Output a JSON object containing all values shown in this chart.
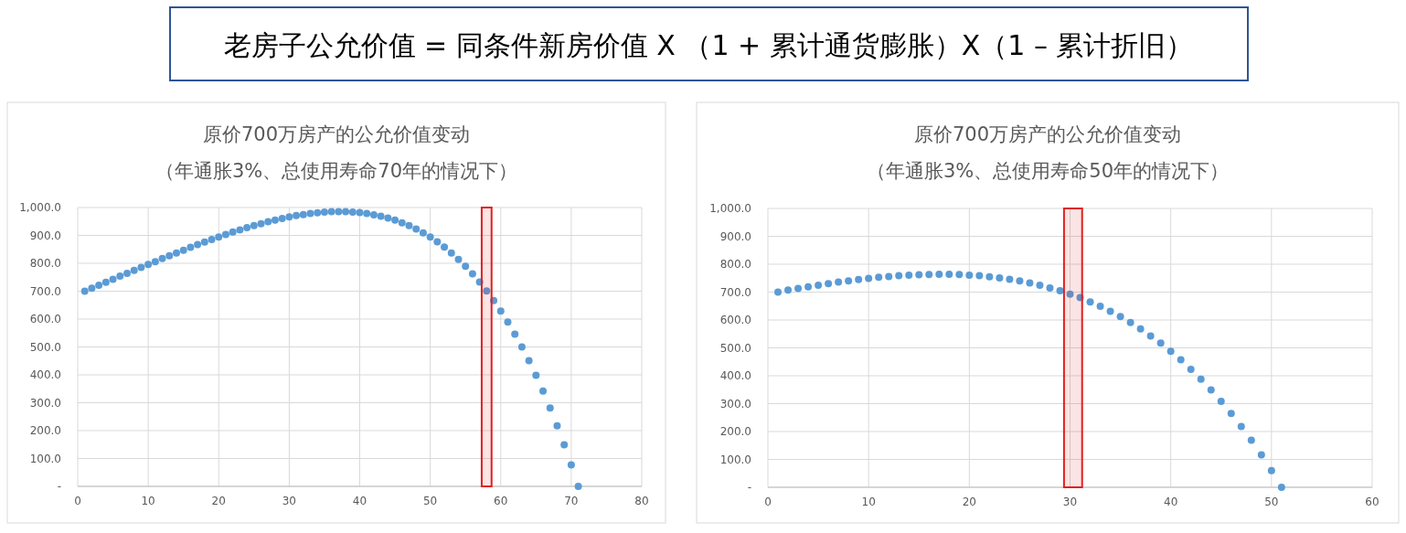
{
  "chart_data": [
    {
      "type": "other",
      "title": "老房子公允价值 = 同条件新房价值 X （1 + 累计通货膨胀）X（1 – 累计折旧）"
    },
    {
      "type": "scatter",
      "title": "原价700万房产的公允价值变动",
      "subtitle": "（年通胀3%、总使用寿命70年的情况下）",
      "marker": "circle",
      "grid": true,
      "x": [
        1,
        2,
        3,
        4,
        5,
        6,
        7,
        8,
        9,
        10,
        11,
        12,
        13,
        14,
        15,
        16,
        17,
        18,
        19,
        20,
        21,
        22,
        23,
        24,
        25,
        26,
        27,
        28,
        29,
        30,
        31,
        32,
        33,
        34,
        35,
        36,
        37,
        38,
        39,
        40,
        41,
        42,
        43,
        44,
        45,
        46,
        47,
        48,
        49,
        50,
        51,
        52,
        53,
        54,
        55,
        56,
        57,
        58,
        59,
        60,
        61,
        62,
        63,
        64,
        65,
        66,
        67,
        68,
        69,
        70,
        71
      ],
      "series": [
        {
          "color": "#5b9bd5",
          "values": [
            700,
            711,
            721,
            732,
            743,
            754,
            764,
            775,
            785,
            796,
            806,
            817,
            827,
            837,
            847,
            857,
            867,
            876,
            885,
            894,
            903,
            912,
            920,
            928,
            935,
            942,
            949,
            955,
            961,
            966,
            971,
            975,
            979,
            981,
            984,
            985,
            985,
            985,
            984,
            982,
            979,
            974,
            969,
            962,
            955,
            945,
            935,
            923,
            909,
            894,
            877,
            858,
            837,
            814,
            789,
            762,
            733,
            701,
            666,
            629,
            589,
            546,
            500,
            451,
            398,
            342,
            281,
            217,
            149,
            77,
            0
          ]
        }
      ],
      "xlim": [
        0,
        80
      ],
      "xticks": [
        0,
        10,
        20,
        30,
        40,
        50,
        60,
        70,
        80
      ],
      "ylim": [
        0,
        1000
      ],
      "yticks": [
        {
          "value": 0,
          "label": "-"
        },
        {
          "value": 100,
          "label": "100.0"
        },
        {
          "value": 200,
          "label": "200.0"
        },
        {
          "value": 300,
          "label": "300.0"
        },
        {
          "value": 400,
          "label": "400.0"
        },
        {
          "value": 500,
          "label": "500.0"
        },
        {
          "value": 600,
          "label": "600.0"
        },
        {
          "value": 700,
          "label": "700.0"
        },
        {
          "value": 800,
          "label": "800.0"
        },
        {
          "value": 900,
          "label": "900.0"
        },
        {
          "value": 1000,
          "label": "1,000.0"
        }
      ],
      "bands": [
        {
          "axis": "x",
          "from": 57.3,
          "to": 58.7,
          "color": "#e02020"
        }
      ]
    },
    {
      "type": "scatter",
      "title": "原价700万房产的公允价值变动",
      "subtitle": "（年通胀3%、总使用寿命50年的情况下）",
      "marker": "circle",
      "grid": true,
      "x": [
        1,
        2,
        3,
        4,
        5,
        6,
        7,
        8,
        9,
        10,
        11,
        12,
        13,
        14,
        15,
        16,
        17,
        18,
        19,
        20,
        21,
        22,
        23,
        24,
        25,
        26,
        27,
        28,
        29,
        30,
        31,
        32,
        33,
        34,
        35,
        36,
        37,
        38,
        39,
        40,
        41,
        42,
        43,
        44,
        45,
        46,
        47,
        48,
        49,
        50,
        51
      ],
      "series": [
        {
          "color": "#5b9bd5",
          "values": [
            700,
            707,
            713,
            719,
            725,
            730,
            736,
            740,
            745,
            749,
            753,
            756,
            759,
            761,
            762,
            763,
            764,
            764,
            763,
            761,
            759,
            755,
            751,
            746,
            740,
            733,
            725,
            715,
            705,
            693,
            680,
            665,
            649,
            631,
            612,
            591,
            568,
            543,
            517,
            488,
            457,
            423,
            388,
            349,
            308,
            265,
            218,
            169,
            116,
            60,
            0
          ]
        }
      ],
      "xlim": [
        0,
        60
      ],
      "xticks": [
        0,
        10,
        20,
        30,
        40,
        50,
        60
      ],
      "ylim": [
        0,
        1000
      ],
      "yticks": [
        {
          "value": 0,
          "label": "-"
        },
        {
          "value": 100,
          "label": "100.0"
        },
        {
          "value": 200,
          "label": "200.0"
        },
        {
          "value": 300,
          "label": "300.0"
        },
        {
          "value": 400,
          "label": "400.0"
        },
        {
          "value": 500,
          "label": "500.0"
        },
        {
          "value": 600,
          "label": "600.0"
        },
        {
          "value": 700,
          "label": "700.0"
        },
        {
          "value": 800,
          "label": "800.0"
        },
        {
          "value": 900,
          "label": "900.0"
        },
        {
          "value": 1000,
          "label": "1,000.0"
        }
      ],
      "bands": [
        {
          "axis": "x",
          "from": 29.4,
          "to": 31.2,
          "color": "#e02020"
        }
      ]
    }
  ]
}
